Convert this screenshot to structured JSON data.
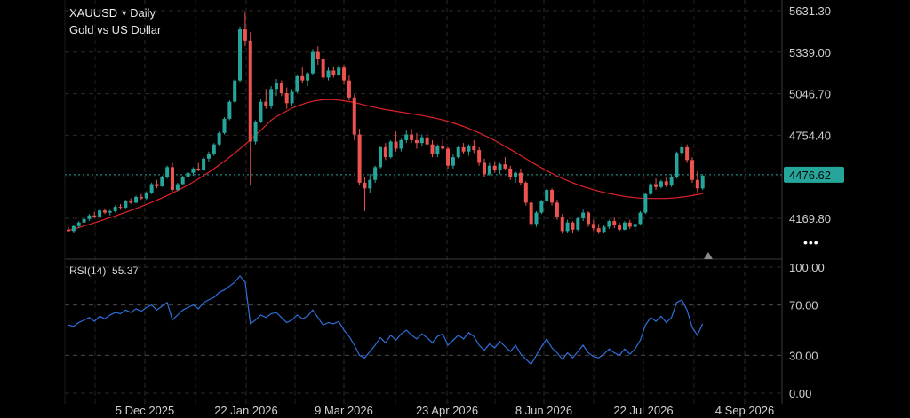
{
  "header": {
    "symbol": "XAUUSD",
    "timeframe": "Daily",
    "description": "Gold vs US Dollar",
    "dropdown_icon": "caret-down-icon"
  },
  "more_menu_icon": "more-dots-icon",
  "more_menu_label": "•••",
  "colors": {
    "up": "#26a69a",
    "down": "#ef5350",
    "ma": "#e0222a",
    "rsi": "#2f6fdb",
    "price_line": "#26a69a",
    "grid": "#2a2a2a"
  },
  "chart_data": [
    {
      "type": "candlestick",
      "title": "XAUUSD Daily",
      "subtitle": "Gold vs US Dollar",
      "x_tick_labels": [
        "5 Dec 2025",
        "22 Jan 2026",
        "9 Mar 2026",
        "23 Apr 2026",
        "8 Jun 2026",
        "22 Jul 2026",
        "4 Sep 2026"
      ],
      "y_tick_labels": [
        "5631.30",
        "5339.00",
        "5046.70",
        "4754.40",
        "4169.80"
      ],
      "ylim": [
        4060,
        5700
      ],
      "grid": true,
      "last_price": 4476.62,
      "last_price_label": "4476.62",
      "series": [
        {
          "name": "price",
          "candles": [
            [
              4090,
              4110,
              4075,
              4080
            ],
            [
              4080,
              4120,
              4070,
              4115
            ],
            [
              4115,
              4150,
              4100,
              4140
            ],
            [
              4140,
              4175,
              4130,
              4165
            ],
            [
              4165,
              4200,
              4150,
              4190
            ],
            [
              4190,
              4215,
              4170,
              4180
            ],
            [
              4180,
              4230,
              4175,
              4225
            ],
            [
              4225,
              4240,
              4200,
              4210
            ],
            [
              4210,
              4230,
              4190,
              4220
            ],
            [
              4220,
              4260,
              4210,
              4250
            ],
            [
              4250,
              4270,
              4230,
              4245
            ],
            [
              4245,
              4300,
              4240,
              4290
            ],
            [
              4290,
              4310,
              4270,
              4280
            ],
            [
              4280,
              4330,
              4275,
              4320
            ],
            [
              4320,
              4340,
              4300,
              4310
            ],
            [
              4310,
              4360,
              4300,
              4350
            ],
            [
              4350,
              4420,
              4340,
              4410
            ],
            [
              4410,
              4440,
              4380,
              4395
            ],
            [
              4395,
              4470,
              4390,
              4460
            ],
            [
              4460,
              4540,
              4450,
              4530
            ],
            [
              4530,
              4560,
              4350,
              4370
            ],
            [
              4370,
              4420,
              4360,
              4410
            ],
            [
              4410,
              4470,
              4400,
              4460
            ],
            [
              4460,
              4500,
              4440,
              4490
            ],
            [
              4490,
              4530,
              4470,
              4520
            ],
            [
              4520,
              4560,
              4500,
              4510
            ],
            [
              4510,
              4600,
              4505,
              4590
            ],
            [
              4590,
              4640,
              4570,
              4620
            ],
            [
              4620,
              4700,
              4610,
              4690
            ],
            [
              4690,
              4780,
              4680,
              4770
            ],
            [
              4770,
              4880,
              4760,
              4870
            ],
            [
              4870,
              5000,
              4860,
              4990
            ],
            [
              4990,
              5150,
              4980,
              5140
            ],
            [
              5140,
              5520,
              5130,
              5500
            ],
            [
              5500,
              5620,
              5380,
              5420
            ],
            [
              5420,
              5480,
              4400,
              4710
            ],
            [
              4710,
              4860,
              4690,
              4850
            ],
            [
              4850,
              5010,
              4840,
              4990
            ],
            [
              4990,
              5080,
              4940,
              4960
            ],
            [
              4960,
              5100,
              4940,
              5080
            ],
            [
              5080,
              5150,
              5030,
              5120
            ],
            [
              5120,
              5140,
              5030,
              5050
            ],
            [
              5050,
              5090,
              4940,
              4980
            ],
            [
              4980,
              5080,
              4960,
              5060
            ],
            [
              5060,
              5180,
              5050,
              5170
            ],
            [
              5170,
              5230,
              5120,
              5140
            ],
            [
              5140,
              5200,
              5100,
              5190
            ],
            [
              5190,
              5360,
              5180,
              5340
            ],
            [
              5340,
              5380,
              5250,
              5290
            ],
            [
              5290,
              5310,
              5140,
              5160
            ],
            [
              5160,
              5230,
              5140,
              5210
            ],
            [
              5210,
              5240,
              5160,
              5180
            ],
            [
              5180,
              5250,
              5170,
              5230
            ],
            [
              5230,
              5250,
              5110,
              5140
            ],
            [
              5140,
              5180,
              5000,
              5020
            ],
            [
              5020,
              5040,
              4720,
              4760
            ],
            [
              4760,
              4800,
              4400,
              4420
            ],
            [
              4420,
              4460,
              4220,
              4380
            ],
            [
              4380,
              4480,
              4350,
              4440
            ],
            [
              4440,
              4540,
              4420,
              4530
            ],
            [
              4530,
              4680,
              4520,
              4670
            ],
            [
              4670,
              4700,
              4580,
              4600
            ],
            [
              4600,
              4720,
              4590,
              4710
            ],
            [
              4710,
              4780,
              4640,
              4660
            ],
            [
              4660,
              4730,
              4640,
              4720
            ],
            [
              4720,
              4790,
              4700,
              4760
            ],
            [
              4760,
              4800,
              4700,
              4720
            ],
            [
              4720,
              4770,
              4660,
              4700
            ],
            [
              4700,
              4760,
              4680,
              4740
            ],
            [
              4740,
              4780,
              4680,
              4690
            ],
            [
              4690,
              4720,
              4600,
              4620
            ],
            [
              4620,
              4690,
              4600,
              4680
            ],
            [
              4680,
              4730,
              4650,
              4660
            ],
            [
              4660,
              4670,
              4520,
              4540
            ],
            [
              4540,
              4620,
              4520,
              4600
            ],
            [
              4600,
              4680,
              4590,
              4670
            ],
            [
              4670,
              4700,
              4620,
              4640
            ],
            [
              4640,
              4690,
              4610,
              4680
            ],
            [
              4680,
              4720,
              4630,
              4650
            ],
            [
              4650,
              4670,
              4540,
              4560
            ],
            [
              4560,
              4590,
              4460,
              4480
            ],
            [
              4480,
              4560,
              4470,
              4540
            ],
            [
              4540,
              4570,
              4490,
              4510
            ],
            [
              4510,
              4560,
              4480,
              4550
            ],
            [
              4550,
              4600,
              4510,
              4520
            ],
            [
              4520,
              4540,
              4440,
              4460
            ],
            [
              4460,
              4500,
              4420,
              4490
            ],
            [
              4490,
              4520,
              4400,
              4420
            ],
            [
              4420,
              4430,
              4260,
              4280
            ],
            [
              4280,
              4300,
              4100,
              4130
            ],
            [
              4130,
              4220,
              4110,
              4210
            ],
            [
              4210,
              4300,
              4200,
              4290
            ],
            [
              4290,
              4380,
              4280,
              4370
            ],
            [
              4370,
              4380,
              4260,
              4280
            ],
            [
              4280,
              4300,
              4160,
              4180
            ],
            [
              4180,
              4200,
              4060,
              4080
            ],
            [
              4080,
              4160,
              4070,
              4140
            ],
            [
              4140,
              4150,
              4070,
              4090
            ],
            [
              4090,
              4180,
              4080,
              4170
            ],
            [
              4170,
              4230,
              4150,
              4210
            ],
            [
              4210,
              4220,
              4110,
              4130
            ],
            [
              4130,
              4160,
              4080,
              4100
            ],
            [
              4100,
              4130,
              4060,
              4075
            ],
            [
              4075,
              4120,
              4065,
              4110
            ],
            [
              4110,
              4160,
              4095,
              4150
            ],
            [
              4150,
              4175,
              4100,
              4120
            ],
            [
              4120,
              4140,
              4080,
              4090
            ],
            [
              4090,
              4150,
              4085,
              4140
            ],
            [
              4140,
              4160,
              4095,
              4110
            ],
            [
              4110,
              4140,
              4080,
              4130
            ],
            [
              4130,
              4220,
              4120,
              4210
            ],
            [
              4210,
              4350,
              4200,
              4340
            ],
            [
              4340,
              4420,
              4330,
              4410
            ],
            [
              4410,
              4450,
              4370,
              4390
            ],
            [
              4390,
              4440,
              4380,
              4430
            ],
            [
              4430,
              4460,
              4390,
              4400
            ],
            [
              4400,
              4480,
              4390,
              4460
            ],
            [
              4460,
              4640,
              4450,
              4630
            ],
            [
              4630,
              4700,
              4600,
              4670
            ],
            [
              4670,
              4690,
              4560,
              4580
            ],
            [
              4580,
              4600,
              4420,
              4440
            ],
            [
              4440,
              4500,
              4350,
              4380
            ],
            [
              4380,
              4480,
              4370,
              4470
            ]
          ]
        },
        {
          "name": "MA",
          "values": [
            4085,
            4095,
            4105,
            4116,
            4127,
            4138,
            4150,
            4162,
            4174,
            4186,
            4199,
            4212,
            4225,
            4239,
            4253,
            4267,
            4282,
            4297,
            4313,
            4330,
            4347,
            4365,
            4384,
            4404,
            4425,
            4447,
            4470,
            4494,
            4519,
            4545,
            4572,
            4600,
            4629,
            4659,
            4690,
            4722,
            4755,
            4789,
            4824,
            4860,
            4885,
            4905,
            4925,
            4945,
            4960,
            4972,
            4984,
            4993,
            5000,
            5004,
            5006,
            5005,
            5002,
            4997,
            4991,
            4984,
            4976,
            4967,
            4958,
            4950,
            4942,
            4935,
            4929,
            4923,
            4917,
            4911,
            4905,
            4899,
            4893,
            4886,
            4879,
            4871,
            4862,
            4852,
            4841,
            4829,
            4816,
            4802,
            4787,
            4771,
            4754,
            4736,
            4717,
            4697,
            4676,
            4655,
            4633,
            4611,
            4589,
            4567,
            4546,
            4525,
            4505,
            4486,
            4468,
            4451,
            4435,
            4420,
            4406,
            4393,
            4382,
            4371,
            4361,
            4352,
            4344,
            4337,
            4330,
            4324,
            4319,
            4315,
            4312,
            4310,
            4309,
            4309,
            4309,
            4310,
            4312,
            4315,
            4319,
            4324,
            4330,
            4336,
            4343
          ]
        }
      ]
    },
    {
      "type": "line",
      "title": "RSI(14)",
      "value_label": "55.37",
      "y_tick_labels": [
        "100.00",
        "70.00",
        "30.00",
        "0.00"
      ],
      "ylim": [
        0,
        100
      ],
      "reference_lines": [
        70,
        30
      ],
      "grid": true,
      "series": [
        {
          "name": "RSI(14)",
          "values": [
            54,
            53,
            56,
            58,
            60,
            57,
            61,
            59,
            62,
            64,
            63,
            66,
            64,
            67,
            65,
            68,
            70,
            66,
            69,
            72,
            58,
            62,
            66,
            68,
            70,
            67,
            72,
            74,
            76,
            80,
            82,
            85,
            88,
            93,
            88,
            55,
            58,
            62,
            60,
            63,
            64,
            60,
            56,
            58,
            62,
            59,
            61,
            66,
            60,
            54,
            56,
            55,
            57,
            50,
            45,
            38,
            30,
            28,
            33,
            38,
            44,
            40,
            46,
            42,
            47,
            50,
            46,
            43,
            47,
            44,
            40,
            45,
            47,
            38,
            42,
            46,
            43,
            48,
            45,
            38,
            34,
            39,
            36,
            41,
            37,
            33,
            38,
            31,
            27,
            23,
            30,
            37,
            43,
            36,
            32,
            27,
            32,
            28,
            33,
            38,
            32,
            29,
            28,
            31,
            35,
            32,
            30,
            35,
            31,
            35,
            42,
            54,
            60,
            57,
            61,
            56,
            60,
            72,
            74,
            66,
            52,
            46,
            55
          ]
        }
      ]
    }
  ]
}
